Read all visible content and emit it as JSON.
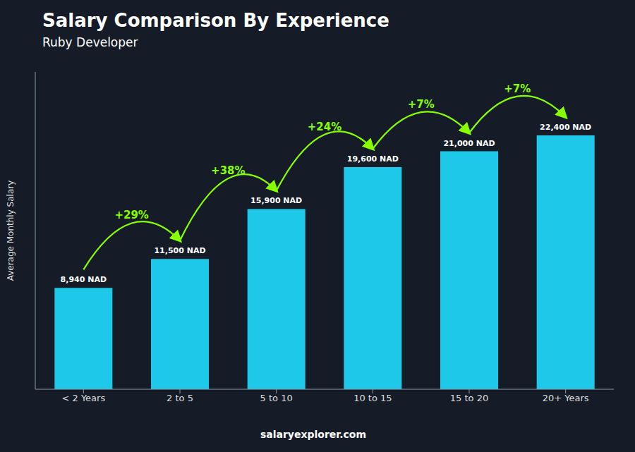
{
  "chart_data": {
    "type": "bar",
    "title": "Salary Comparison By Experience",
    "subtitle": "Ruby Developer",
    "ylabel": "Average Monthly Salary",
    "categories": [
      "< 2 Years",
      "2 to 5",
      "5 to 10",
      "10 to 15",
      "15 to 20",
      "20+ Years"
    ],
    "values": [
      8940,
      11500,
      15900,
      19600,
      21000,
      22400
    ],
    "value_labels": [
      "8,940 NAD",
      "11,500 NAD",
      "15,900 NAD",
      "19,600 NAD",
      "21,000 NAD",
      "22,400 NAD"
    ],
    "data_labels": true,
    "color": "#1ec8e8",
    "ylim": [
      0,
      28000
    ],
    "grid": false,
    "tick_labels": "x",
    "annotations": [
      {
        "text": "+29%",
        "from": "< 2 Years",
        "to": "2 to 5",
        "color": "#88ff00"
      },
      {
        "text": "+38%",
        "from": "2 to 5",
        "to": "5 to 10",
        "color": "#88ff00"
      },
      {
        "text": "+24%",
        "from": "5 to 10",
        "to": "10 to 15",
        "color": "#88ff00"
      },
      {
        "text": "+7%",
        "from": "10 to 15",
        "to": "15 to 20",
        "color": "#88ff00"
      },
      {
        "text": "+7%",
        "from": "15 to 20",
        "to": "20+ Years",
        "color": "#88ff00"
      },
      {
        "text": "salaryexplorer.com"
      }
    ]
  }
}
